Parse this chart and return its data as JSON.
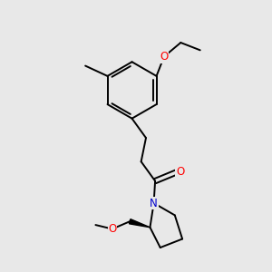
{
  "background_color": "#e8e8e8",
  "bond_color": "#000000",
  "atom_colors": {
    "O": "#ff0000",
    "N": "#0000cd",
    "C": "#000000"
  },
  "font_size_atoms": 8.5,
  "line_width": 1.4,
  "fig_size": [
    3.0,
    3.0
  ],
  "dpi": 100,
  "xlim": [
    1.0,
    8.5
  ],
  "ylim": [
    2.5,
    12.5
  ]
}
